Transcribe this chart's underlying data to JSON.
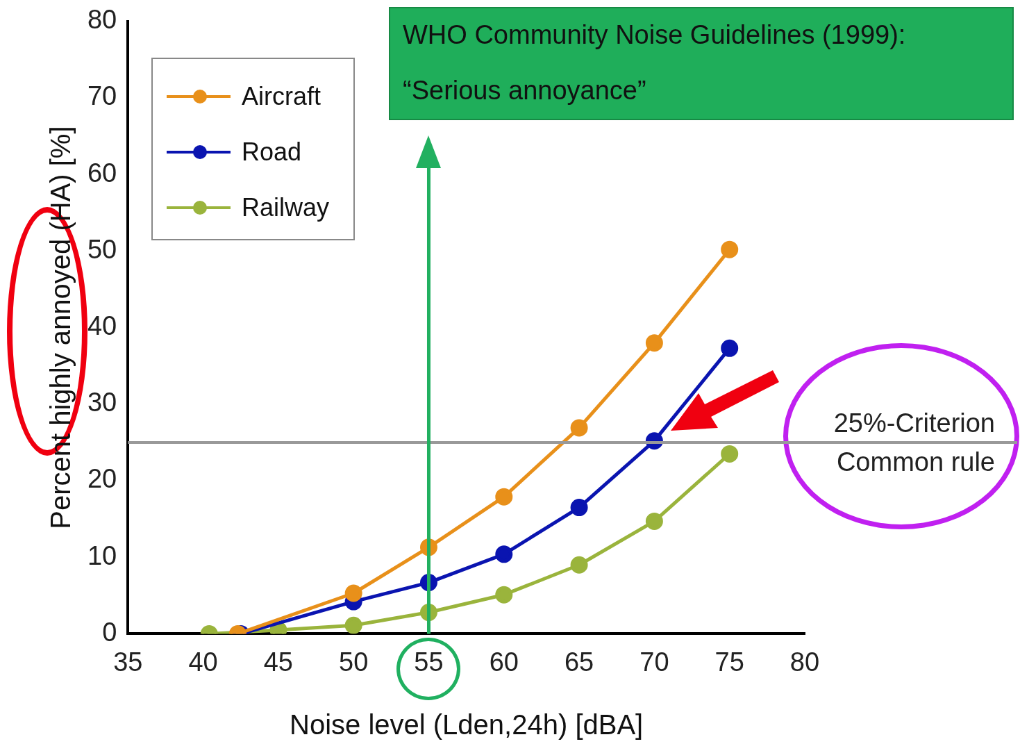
{
  "chart_data": {
    "type": "line",
    "xlabel": "Noise level (Lden,24h) [dBA]",
    "ylabel": "Percent highly annoyed (HA) [%]",
    "xlim": [
      35,
      80
    ],
    "xticks": [
      35,
      40,
      45,
      50,
      55,
      60,
      65,
      70,
      75,
      80
    ],
    "ylim": [
      0,
      80
    ],
    "yticks": [
      0,
      10,
      20,
      30,
      40,
      50,
      60,
      70,
      80
    ],
    "grid": false,
    "legend": "top left",
    "marker": "circle",
    "line_style": "solid",
    "series": [
      {
        "name": "Aircraft",
        "color": "#e8901a",
        "x": [
          42.3,
          50,
          55,
          60,
          65,
          70,
          75
        ],
        "values": [
          0,
          5.3,
          11.3,
          17.9,
          26.9,
          38,
          50.2
        ]
      },
      {
        "name": "Road",
        "color": "#0a14b0",
        "x": [
          42.5,
          50,
          55,
          60,
          65,
          70,
          75
        ],
        "values": [
          0,
          4.2,
          6.7,
          10.4,
          16.5,
          25.2,
          37.3
        ]
      },
      {
        "name": "Railway",
        "color": "#9ab43c",
        "x": [
          40.4,
          45,
          50,
          55,
          60,
          65,
          70,
          75
        ],
        "values": [
          0,
          0.5,
          1.1,
          2.8,
          5.1,
          9,
          14.7,
          23.5
        ]
      }
    ],
    "ref_lines": [
      {
        "axis": "y",
        "value": 25,
        "label": "25%-Criterion",
        "color": "#999999"
      },
      {
        "axis": "x",
        "value": 55,
        "color": "#22b060"
      }
    ],
    "annotations": [
      "WHO Community Noise Guidelines (1999):",
      "“Serious annoyance”",
      "Common rule"
    ]
  }
}
